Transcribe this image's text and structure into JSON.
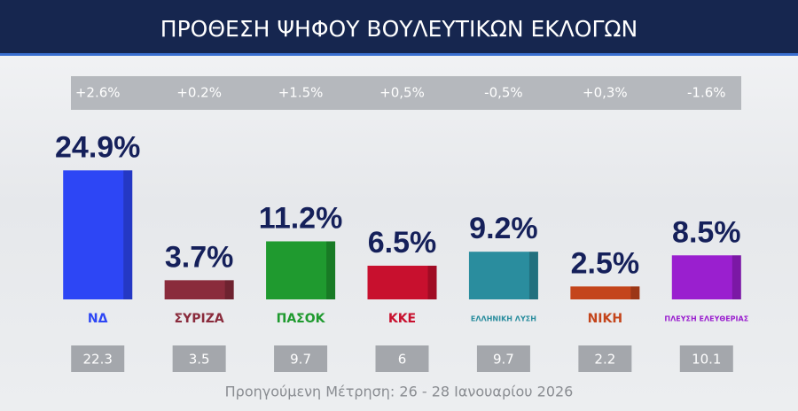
{
  "chart_data": {
    "type": "bar",
    "title": "ΠΡΟΘΕΣΗ ΨΗΦΟΥ ΒΟΥΛΕΥΤΙΚΩΝ ΕΚΛΟΓΩΝ",
    "categories": [
      "ΝΔ",
      "ΣΥΡΙΖΑ",
      "ΠΑΣΟΚ",
      "ΚΚΕ",
      "ΕΛΛΗΝΙΚΗ ΛΥΣΗ",
      "ΝΙΚΗ",
      "ΠΛΕΥΣΗ ΕΛΕΥΘΕΡΙΑΣ"
    ],
    "values": [
      24.9,
      3.7,
      11.2,
      6.5,
      9.2,
      2.5,
      8.5
    ],
    "value_labels": [
      "24.9%",
      "3.7%",
      "11.2%",
      "6.5%",
      "9.2%",
      "2.5%",
      "8.5%"
    ],
    "colors": [
      "#2d46f5",
      "#8a2b3c",
      "#1f9a2f",
      "#c8102e",
      "#2a8d9e",
      "#c4451c",
      "#9a1fcf"
    ],
    "change_labels": [
      "+2.6%",
      "+0.2%",
      "+1.5%",
      "+0,5%",
      "-0,5%",
      "+0,3%",
      "-1.6%"
    ],
    "previous": [
      22.3,
      3.5,
      9.7,
      6,
      9.7,
      2.2,
      10.1
    ],
    "footnote": "Προηγούμενη Μέτρηση: 26 - 28 Ιανουαρίου 2026"
  }
}
